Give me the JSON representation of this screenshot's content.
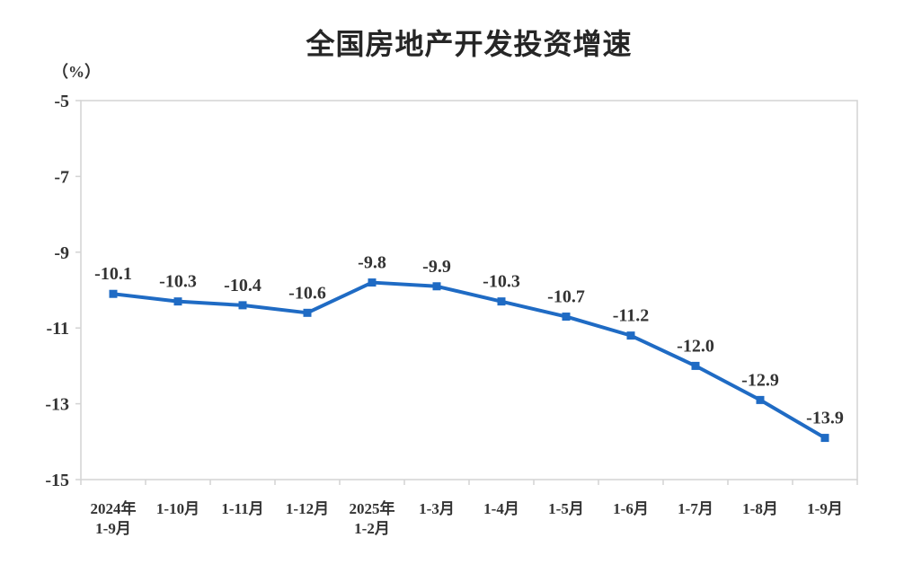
{
  "chart": {
    "title": "全国房地产开发投资增速",
    "unit": "（%）"
  },
  "chart_data": {
    "type": "line",
    "title": "全国房地产开发投资增速",
    "unit_label": "（%）",
    "categories": [
      "2024年\n1-9月",
      "1-10月",
      "1-11月",
      "1-12月",
      "2025年\n1-2月",
      "1-3月",
      "1-4月",
      "1-5月",
      "1-6月",
      "1-7月",
      "1-8月",
      "1-9月"
    ],
    "values": [
      -10.1,
      -10.3,
      -10.4,
      -10.6,
      -9.8,
      -9.9,
      -10.3,
      -10.7,
      -11.2,
      -12.0,
      -12.9,
      -13.9
    ],
    "data_labels": [
      "-10.1",
      "-10.3",
      "-10.4",
      "-10.6",
      "-9.8",
      "-9.9",
      "-10.3",
      "-10.7",
      "-11.2",
      "-12.0",
      "-12.9",
      "-13.9"
    ],
    "ylim": [
      -15,
      -5
    ],
    "yticks": [
      -5,
      -7,
      -9,
      -11,
      -13,
      -15
    ],
    "grid": false,
    "legend": "none",
    "marker": "square",
    "line_color": "#1F6BC4",
    "axis_color": "#D3D3D3",
    "text_color": "#333333"
  }
}
